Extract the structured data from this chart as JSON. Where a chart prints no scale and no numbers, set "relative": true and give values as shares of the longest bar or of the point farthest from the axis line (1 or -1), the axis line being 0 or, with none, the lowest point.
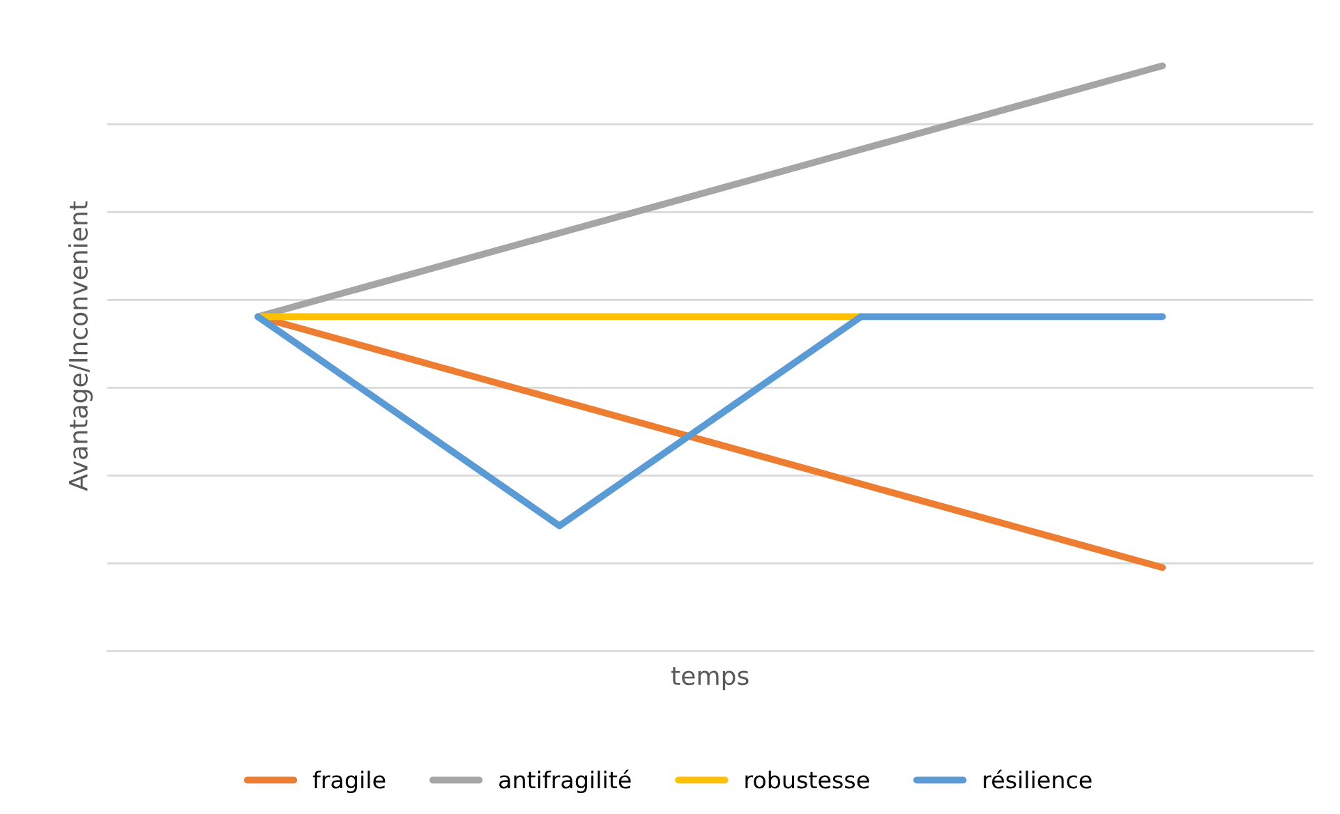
{
  "chart_data": {
    "type": "line",
    "relative": true,
    "xlabel": "temps",
    "ylabel": "Avantage/Inconvenient",
    "categories": [
      null,
      null,
      null,
      null
    ],
    "series": [
      {
        "name": "fragile",
        "color": "#ed7d31",
        "values": [
          0.5714,
          0.4286,
          0.2857,
          0.1429
        ]
      },
      {
        "name": "antifragilité",
        "color": "#a5a5a5",
        "values": [
          0.5714,
          0.7143,
          0.8571,
          1
        ]
      },
      {
        "name": "robustesse",
        "color": "#ffc000",
        "values": [
          0.5714,
          0.5714,
          0.5714,
          null
        ]
      },
      {
        "name": "résilience",
        "color": "#5b9bd5",
        "values": [
          0.5714,
          0.2143,
          0.5714,
          0.5714
        ]
      }
    ],
    "grid": "y",
    "legend": "bottom",
    "marker": "none",
    "line_style": "solid"
  }
}
